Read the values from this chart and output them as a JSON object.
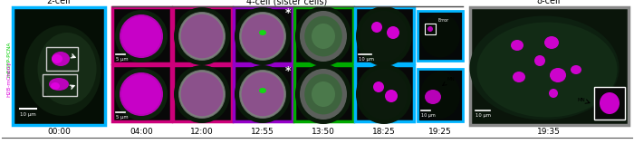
{
  "bg_color": "#ffffff",
  "cell_2_border": "#00b4ff",
  "cell_4_border_magenta": "#cc007a",
  "cell_4_border_purple": "#9400c8",
  "cell_4_border_green": "#00aa00",
  "cell_4_border_cyan": "#00b4ff",
  "cell_8_border": "#888888",
  "section_labels": [
    "2-cell",
    "4-cell (sister cells)",
    "8-cell"
  ],
  "time_labels": [
    "00:00",
    "04:00",
    "12:00",
    "12:55",
    "13:50",
    "18:25",
    "19:25",
    "19:35"
  ],
  "ylabel_green": "mEGFP-PCNA",
  "ylabel_magenta": "H2B-mCherry",
  "overline_color": "#444444",
  "bottom_line_color": "#555555",
  "white": "#ffffff",
  "black": "#000000"
}
